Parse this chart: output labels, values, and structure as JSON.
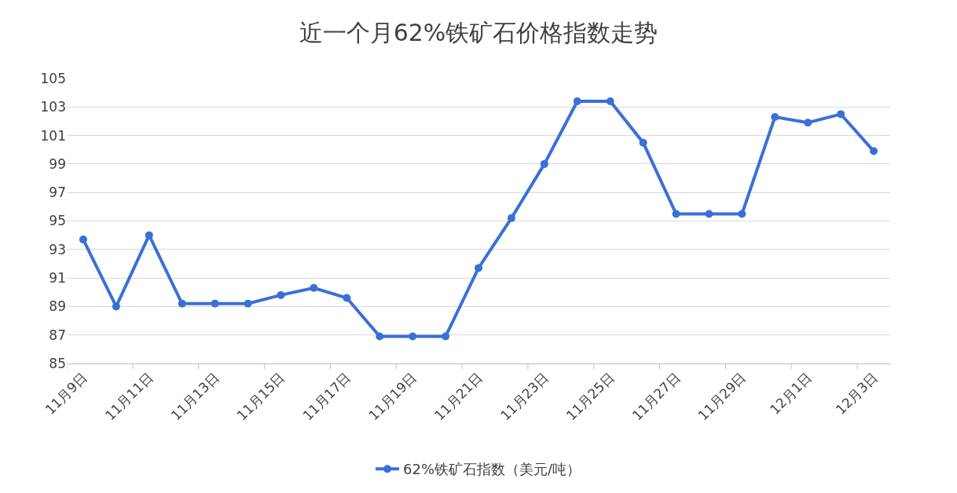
{
  "chart_data": {
    "type": "line",
    "title": "近一个月62%铁矿石价格指数走势",
    "categories": [
      "11月9日",
      null,
      "11月11日",
      null,
      "11月13日",
      null,
      "11月15日",
      null,
      "11月17日",
      null,
      "11月19日",
      null,
      "11月21日",
      null,
      "11月23日",
      null,
      "11月25日",
      null,
      "11月27日",
      null,
      "11月29日",
      null,
      "12月1日",
      null,
      "12月3日"
    ],
    "series": [
      {
        "name": "62%铁矿石指数（美元/吨）",
        "color": "#3a70d6",
        "values": [
          93.7,
          89.0,
          94.0,
          89.2,
          89.2,
          89.2,
          89.8,
          90.3,
          89.6,
          86.9,
          86.9,
          86.9,
          91.7,
          95.2,
          99.0,
          103.4,
          103.4,
          100.5,
          95.5,
          95.5,
          95.5,
          102.3,
          101.9,
          102.5,
          99.9
        ]
      }
    ],
    "ylim": [
      85,
      105
    ],
    "yticks": [
      85,
      87,
      89,
      91,
      93,
      95,
      97,
      99,
      101,
      103,
      105
    ],
    "grid": "y",
    "legend": "bottom",
    "marker": "circle",
    "line_style": "solid"
  }
}
